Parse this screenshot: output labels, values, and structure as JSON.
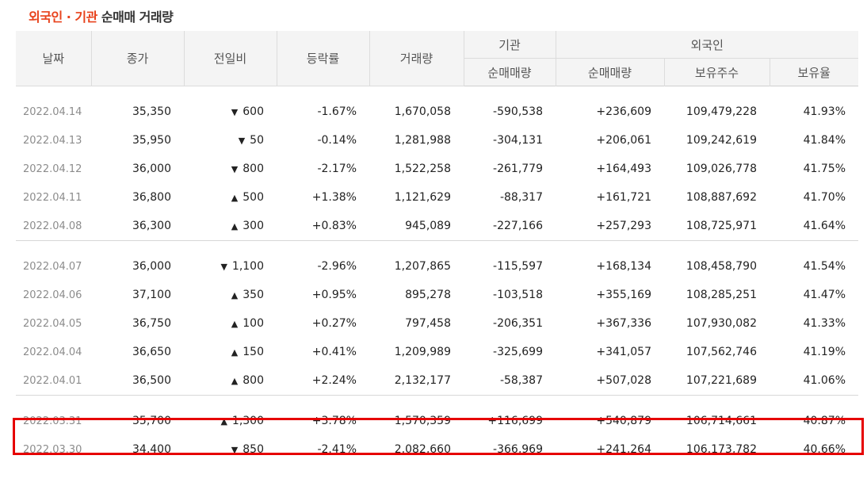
{
  "title": {
    "highlight": "외국인 · 기관",
    "rest": " 순매매 거래량"
  },
  "headers": {
    "date": "날짜",
    "close": "종가",
    "change": "전일비",
    "rate": "등락률",
    "volume": "거래량",
    "inst_group": "기관",
    "inst_net": "순매매량",
    "foreign_group": "외국인",
    "foreign_net": "순매매량",
    "foreign_shares": "보유주수",
    "foreign_ratio": "보유율"
  },
  "groups": [
    {
      "rows": [
        {
          "date": "2022.04.14",
          "close": "35,350",
          "dir": "down",
          "arrow": "▼",
          "change": "600",
          "rate": "-1.67%",
          "volume": "1,670,058",
          "inst": "-590,538",
          "inst_dir": "down",
          "foreign": "+236,609",
          "foreign_dir": "up",
          "shares": "109,479,228",
          "ratio": "41.93%"
        },
        {
          "date": "2022.04.13",
          "close": "35,950",
          "dir": "down",
          "arrow": "▼",
          "change": "50",
          "rate": "-0.14%",
          "volume": "1,281,988",
          "inst": "-304,131",
          "inst_dir": "down",
          "foreign": "+206,061",
          "foreign_dir": "up",
          "shares": "109,242,619",
          "ratio": "41.84%"
        },
        {
          "date": "2022.04.12",
          "close": "36,000",
          "dir": "down",
          "arrow": "▼",
          "change": "800",
          "rate": "-2.17%",
          "volume": "1,522,258",
          "inst": "-261,779",
          "inst_dir": "down",
          "foreign": "+164,493",
          "foreign_dir": "up",
          "shares": "109,026,778",
          "ratio": "41.75%"
        },
        {
          "date": "2022.04.11",
          "close": "36,800",
          "dir": "up",
          "arrow": "▲",
          "change": "500",
          "rate": "+1.38%",
          "volume": "1,121,629",
          "inst": "-88,317",
          "inst_dir": "down",
          "foreign": "+161,721",
          "foreign_dir": "up",
          "shares": "108,887,692",
          "ratio": "41.70%"
        },
        {
          "date": "2022.04.08",
          "close": "36,300",
          "dir": "up",
          "arrow": "▲",
          "change": "300",
          "rate": "+0.83%",
          "volume": "945,089",
          "inst": "-227,166",
          "inst_dir": "down",
          "foreign": "+257,293",
          "foreign_dir": "up",
          "shares": "108,725,971",
          "ratio": "41.64%"
        }
      ]
    },
    {
      "rows": [
        {
          "date": "2022.04.07",
          "close": "36,000",
          "dir": "down",
          "arrow": "▼",
          "change": "1,100",
          "rate": "-2.96%",
          "volume": "1,207,865",
          "inst": "-115,597",
          "inst_dir": "down",
          "foreign": "+168,134",
          "foreign_dir": "up",
          "shares": "108,458,790",
          "ratio": "41.54%"
        },
        {
          "date": "2022.04.06",
          "close": "37,100",
          "dir": "up",
          "arrow": "▲",
          "change": "350",
          "rate": "+0.95%",
          "volume": "895,278",
          "inst": "-103,518",
          "inst_dir": "down",
          "foreign": "+355,169",
          "foreign_dir": "up",
          "shares": "108,285,251",
          "ratio": "41.47%"
        },
        {
          "date": "2022.04.05",
          "close": "36,750",
          "dir": "up",
          "arrow": "▲",
          "change": "100",
          "rate": "+0.27%",
          "volume": "797,458",
          "inst": "-206,351",
          "inst_dir": "down",
          "foreign": "+367,336",
          "foreign_dir": "up",
          "shares": "107,930,082",
          "ratio": "41.33%"
        },
        {
          "date": "2022.04.04",
          "close": "36,650",
          "dir": "up",
          "arrow": "▲",
          "change": "150",
          "rate": "+0.41%",
          "volume": "1,209,989",
          "inst": "-325,699",
          "inst_dir": "down",
          "foreign": "+341,057",
          "foreign_dir": "up",
          "shares": "107,562,746",
          "ratio": "41.19%"
        },
        {
          "date": "2022.04.01",
          "close": "36,500",
          "dir": "up",
          "arrow": "▲",
          "change": "800",
          "rate": "+2.24%",
          "volume": "2,132,177",
          "inst": "-58,387",
          "inst_dir": "down",
          "foreign": "+507,028",
          "foreign_dir": "up",
          "shares": "107,221,689",
          "ratio": "41.06%"
        }
      ]
    },
    {
      "rows": [
        {
          "date": "2022.03.31",
          "close": "35,700",
          "dir": "up",
          "arrow": "▲",
          "change": "1,300",
          "rate": "+3.78%",
          "volume": "1,570,359",
          "inst": "+116,699",
          "inst_dir": "up",
          "foreign": "+540,879",
          "foreign_dir": "up",
          "shares": "106,714,661",
          "ratio": "40.87%"
        },
        {
          "date": "2022.03.30",
          "close": "34,400",
          "dir": "down",
          "arrow": "▼",
          "change": "850",
          "rate": "-2.41%",
          "volume": "2,082,660",
          "inst": "-366,969",
          "inst_dir": "down",
          "foreign": "+241,264",
          "foreign_dir": "up",
          "shares": "106,173,782",
          "ratio": "40.66%"
        }
      ]
    }
  ],
  "colors": {
    "up": "#d41f1f",
    "down": "#1a5fd6",
    "title_highlight": "#e8421c",
    "highlight_box": "#e60000"
  }
}
